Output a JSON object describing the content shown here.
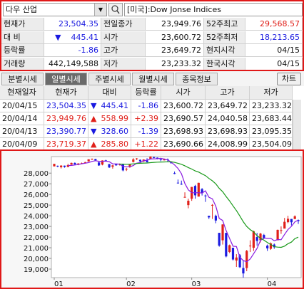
{
  "header": {
    "symbol": "다우 산업",
    "search_text": "[미국]:Dow Jonse Indices"
  },
  "quote": {
    "rows": [
      [
        "현재가",
        "23,504.35",
        "전일종가",
        "23,949.76",
        "52주최고",
        "29,568.57"
      ],
      [
        "대 비",
        {
          "arrow": "▼",
          "text": "445.41"
        },
        "시가",
        "23,600.72",
        "52주최저",
        "18,213.65"
      ],
      [
        "등락률",
        "-1.86",
        "고가",
        "23,649.72",
        "현지시각",
        "04/15"
      ],
      [
        "거래량",
        "442,149,588",
        "저가",
        "23,233.32",
        "한국시각",
        "04/15"
      ]
    ]
  },
  "tabs": [
    "분별시세",
    "일별시세",
    "주별시세",
    "월별시세",
    "종목정보"
  ],
  "selected_tab": 1,
  "chart_button": "차트",
  "table": {
    "columns": [
      "현재일자",
      "현재가",
      "대비",
      "등락률",
      "시가",
      "고가",
      "저가"
    ],
    "rows": [
      {
        "direction": "down",
        "cells": [
          "20/04/15",
          "23,504.35",
          {
            "arrow": "▼",
            "text": "445.41"
          },
          "-1.86",
          "23,600.72",
          "23,649.72",
          "23,233.32"
        ]
      },
      {
        "direction": "up",
        "cells": [
          "20/04/14",
          "23,949.76",
          {
            "arrow": "▲",
            "text": "558.99"
          },
          "+2.39",
          "23,690.57",
          "24,040.58",
          "23,683.44"
        ]
      },
      {
        "direction": "down",
        "cells": [
          "20/04/13",
          "23,390.77",
          {
            "arrow": "▼",
            "text": "328.60"
          },
          "-1.39",
          "23,698.93",
          "23,698.93",
          "23,095.35"
        ]
      },
      {
        "direction": "up",
        "cells": [
          "20/04/09",
          "23,719.37",
          {
            "arrow": "▲",
            "text": "285.80"
          },
          "+1.22",
          "23,690.66",
          "24,008.99",
          "23,504.09"
        ]
      }
    ]
  },
  "chart": {
    "type": "candlestick",
    "up_color": "#e0201a",
    "down_color": "#1a1ae0",
    "ylim": [
      18200,
      29550
    ],
    "yticks": [
      {
        "value": 28000,
        "label": "28,000"
      },
      {
        "value": 27000,
        "label": "27,000"
      },
      {
        "value": 26000,
        "label": "26,000"
      },
      {
        "value": 25000,
        "label": "25,000"
      },
      {
        "value": 24000,
        "label": "24,000"
      },
      {
        "value": 23000,
        "label": "23,000"
      },
      {
        "value": 22000,
        "label": "22,000"
      },
      {
        "value": 21000,
        "label": "21,000"
      },
      {
        "value": 20000,
        "label": "20,000"
      },
      {
        "value": 19000,
        "label": "19,000"
      }
    ],
    "xticks": [
      {
        "value": 0,
        "label": "01"
      },
      {
        "value": 21,
        "label": "02"
      },
      {
        "value": 40,
        "label": "03"
      },
      {
        "value": 62,
        "label": "04"
      }
    ],
    "open": [
      28639,
      28690,
      28553,
      28700,
      28580,
      28800,
      28950,
      28850,
      28920,
      28960,
      29100,
      29300,
      29320,
      29000,
      28800,
      29200,
      28850,
      28600,
      28820,
      28800,
      28820,
      28350,
      28600,
      29050,
      29330,
      29250,
      29100,
      29200,
      29300,
      29500,
      29450,
      29300,
      29200,
      29300,
      29000,
      28000,
      27100,
      27000,
      25700,
      25000,
      25600,
      26800,
      25800,
      26500,
      25900,
      24000,
      25000,
      24000,
      22400,
      21700,
      22400,
      20600,
      21000,
      19800,
      20300,
      19100,
      19100,
      21200,
      21000,
      22000,
      21700,
      22200,
      21200,
      20900,
      21300,
      21700,
      22600,
      22800,
      23400,
      23700,
      23700,
      23600
    ],
    "high": [
      28872,
      28710,
      28749,
      28710,
      28881,
      28990,
      29010,
      28930,
      28990,
      29060,
      29300,
      29373,
      29350,
      29050,
      29200,
      29250,
      28860,
      28760,
      28890,
      28900,
      28890,
      28500,
      28850,
      29400,
      29410,
      29280,
      29300,
      29400,
      29570,
      29520,
      29470,
      29350,
      29370,
      29370,
      29100,
      28150,
      27400,
      27300,
      26200,
      25600,
      26710,
      26900,
      27100,
      26600,
      25990,
      24000,
      25100,
      24100,
      22400,
      23200,
      22400,
      21300,
      21000,
      20400,
      20400,
      19800,
      20800,
      21700,
      22600,
      22400,
      22400,
      22300,
      21300,
      21500,
      21400,
      22700,
      23000,
      23800,
      24000,
      23700,
      24040,
      23650
    ],
    "low": [
      28627,
      28550,
      28440,
      28510,
      28550,
      28780,
      28790,
      28740,
      28850,
      28910,
      29080,
      29230,
      29150,
      28680,
      28730,
      29100,
      28480,
      28420,
      28680,
      28720,
      28170,
      28200,
      28500,
      29000,
      29230,
      29030,
      29050,
      29000,
      29280,
      29400,
      29300,
      29120,
      29190,
      29070,
      28900,
      27900,
      27050,
      26900,
      25700,
      24700,
      25400,
      25600,
      25800,
      25900,
      25300,
      23700,
      23700,
      23300,
      21100,
      21300,
      20100,
      20500,
      19800,
      19200,
      19100,
      18200,
      18800,
      20600,
      20700,
      21200,
      21500,
      21800,
      20700,
      20800,
      20900,
      21700,
      22300,
      22800,
      23300,
      23100,
      23680,
      23233
    ],
    "close": [
      28868,
      28634,
      28703,
      28583,
      28745,
      28956,
      28823,
      28907,
      28939,
      29030,
      29297,
      29348,
      29196,
      28722,
      29186,
      29160,
      28535,
      28723,
      28734,
      28859,
      28256,
      28399,
      28807,
      29290,
      29379,
      29102,
      29276,
      29020,
      29551,
      29423,
      29398,
      29232,
      29348,
      29219,
      28992,
      27961,
      27081,
      26957,
      25767,
      25409,
      26703,
      25917,
      27091,
      26121,
      25865,
      23851,
      25018,
      23553,
      21200,
      23186,
      20189,
      21237,
      19899,
      20087,
      19174,
      18592,
      20705,
      21201,
      22552,
      21637,
      22327,
      21917,
      20943,
      21413,
      21053,
      22680,
      22654,
      23434,
      23719,
      23391,
      23950,
      23504
    ],
    "lines": [
      {
        "color": "#8a1ae0",
        "values": [
          null,
          null,
          null,
          null,
          28707,
          28724,
          28762,
          28803,
          28874,
          28931,
          28991,
          29104,
          29162,
          29109,
          29110,
          29122,
          29073,
          28865,
          28868,
          28840,
          28621,
          28594,
          28595,
          28708,
          28937,
          28995,
          29171,
          29213,
          29320,
          29346,
          29350,
          29390,
          29319,
          29244,
          29034,
          28766,
          28442,
          27951,
          27035,
          26435,
          26167,
          26151,
          26163,
          26131,
          26339,
          25729,
          25589,
          24902,
          23757,
          23562,
          22629,
          21873,
          21142,
          21120,
          20117,
          19798,
          19691,
          19952,
          20445,
          20937,
          21684,
          21927,
          21876,
          21887,
          21656,
          21775,
          21750,
          22247,
          22708,
          23016,
          23430,
          23600
        ]
      },
      {
        "color": "#1a9a1a",
        "values": [
          null,
          null,
          null,
          null,
          null,
          null,
          null,
          null,
          null,
          null,
          null,
          null,
          null,
          null,
          null,
          null,
          null,
          null,
          null,
          28850,
          28840,
          28830,
          28840,
          28870,
          28905,
          28920,
          28940,
          28950,
          28980,
          29010,
          29030,
          29040,
          29050,
          29060,
          29070,
          29010,
          28925,
          28830,
          28690,
          28520,
          28380,
          28210,
          28100,
          27930,
          27770,
          27500,
          27280,
          26990,
          26570,
          26260,
          25810,
          25400,
          24930,
          24490,
          23980,
          23440,
          23000,
          22700,
          22490,
          22130,
          21900,
          21710,
          21500,
          21300,
          21100,
          21060,
          21040,
          21150,
          21380,
          21530,
          21860,
          21990
        ]
      }
    ]
  }
}
